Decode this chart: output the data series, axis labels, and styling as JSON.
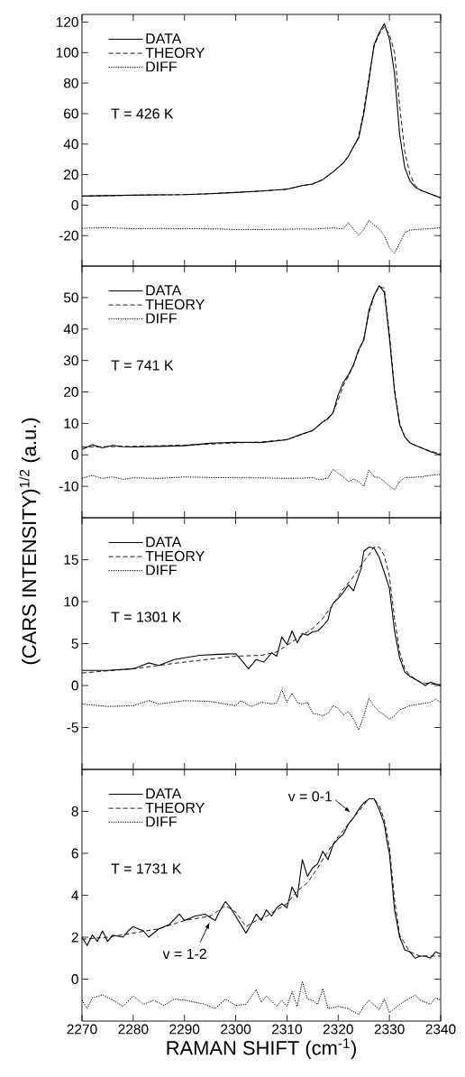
{
  "chart_data": [
    {
      "type": "line",
      "xlim": [
        2270,
        2340
      ],
      "ylim": [
        -40,
        125
      ],
      "xticks": [
        2270,
        2280,
        2290,
        2300,
        2310,
        2320,
        2330,
        2340
      ],
      "yticks": [
        -20,
        0,
        20,
        40,
        60,
        80,
        100,
        120
      ],
      "tick_labels": "y",
      "legend": "top left",
      "annotations": [
        "T = 426 K"
      ],
      "series": [
        {
          "name": "DATA",
          "color": "#000000",
          "line_style": "solid",
          "x": [
            2270,
            2275,
            2280,
            2285,
            2290,
            2295,
            2300,
            2305,
            2310,
            2313,
            2315,
            2317,
            2319,
            2321,
            2322,
            2323,
            2324,
            2325,
            2326,
            2327,
            2328,
            2329,
            2330,
            2331,
            2332,
            2333,
            2334,
            2335,
            2336,
            2338,
            2340
          ],
          "values": [
            5.9,
            6.2,
            6.5,
            6.7,
            6.9,
            7.5,
            8.3,
            9.2,
            10.4,
            12.8,
            13.8,
            16.7,
            21.7,
            27.6,
            32,
            38.4,
            44,
            60,
            82,
            105,
            113,
            119,
            109,
            86,
            46,
            24.6,
            15.8,
            11.8,
            9.9,
            7.3,
            4.7
          ]
        },
        {
          "name": "THEORY",
          "color": "#000000",
          "line_style": "dashed",
          "x": [
            2270,
            2275,
            2280,
            2285,
            2290,
            2295,
            2300,
            2305,
            2310,
            2313,
            2315,
            2317,
            2319,
            2321,
            2322,
            2323,
            2324,
            2325,
            2326,
            2327,
            2328,
            2329,
            2330,
            2331,
            2332,
            2333,
            2334,
            2335,
            2336,
            2338,
            2340
          ],
          "values": [
            5.9,
            6.2,
            6.5,
            6.7,
            6.9,
            7.5,
            8.3,
            9.2,
            10.4,
            12.8,
            13.8,
            16.7,
            21.7,
            27.6,
            32,
            38.4,
            45,
            62,
            84,
            104,
            112,
            117,
            112,
            100,
            65,
            35,
            20,
            13,
            10,
            7.3,
            4.7
          ]
        },
        {
          "name": "DIFF",
          "color": "#000000",
          "line_style": "dotted",
          "x": [
            2270,
            2275,
            2280,
            2285,
            2290,
            2295,
            2300,
            2305,
            2310,
            2313,
            2315,
            2317,
            2319,
            2321,
            2322,
            2323,
            2324,
            2325,
            2326,
            2327,
            2328,
            2329,
            2330,
            2331,
            2332,
            2333,
            2334,
            2335,
            2336,
            2338,
            2340
          ],
          "values": [
            -15.2,
            -14.8,
            -15.5,
            -15.3,
            -15.5,
            -15.5,
            -16,
            -16,
            -15.8,
            -15.6,
            -15.8,
            -15.3,
            -15,
            -15.5,
            -11.5,
            -16,
            -19.7,
            -16,
            -10,
            -13,
            -15.8,
            -20,
            -28,
            -31.5,
            -25,
            -18,
            -16.5,
            -16,
            -15.8,
            -15.5,
            -14.8
          ]
        }
      ]
    },
    {
      "type": "line",
      "xlim": [
        2270,
        2340
      ],
      "ylim": [
        -20,
        60
      ],
      "xticks": [
        2270,
        2280,
        2290,
        2300,
        2310,
        2320,
        2330,
        2340
      ],
      "yticks": [
        -10,
        0,
        10,
        20,
        30,
        40,
        50
      ],
      "tick_labels": "y",
      "legend": "top left",
      "annotations": [
        "T = 741 K"
      ],
      "ylabel": "(CARS INTENSITY)$^{1/2}$ (a.u.)",
      "series": [
        {
          "name": "DATA",
          "color": "#000000",
          "line_style": "solid",
          "x": [
            2270,
            2272,
            2274,
            2276,
            2278,
            2280,
            2285,
            2290,
            2295,
            2300,
            2305,
            2310,
            2313,
            2315,
            2316,
            2317,
            2318,
            2319,
            2320,
            2321,
            2322,
            2323,
            2324,
            2325,
            2326,
            2327,
            2328,
            2329,
            2330,
            2331,
            2332,
            2333,
            2334,
            2336,
            2338,
            2340
          ],
          "values": [
            1.7,
            3.2,
            2.2,
            3.0,
            2.6,
            2.5,
            2.7,
            2.9,
            3.7,
            4.0,
            3.9,
            4.8,
            6.7,
            7.7,
            9.1,
            10.5,
            11.5,
            13.4,
            19.1,
            23,
            25.4,
            28.7,
            33.5,
            36.4,
            46,
            50.7,
            53.8,
            51.7,
            37.3,
            20,
            9.6,
            5.7,
            3.8,
            2.4,
            1,
            0
          ]
        },
        {
          "name": "THEORY",
          "color": "#000000",
          "line_style": "dashed",
          "x": [
            2270,
            2272,
            2274,
            2276,
            2278,
            2280,
            2285,
            2290,
            2295,
            2300,
            2305,
            2310,
            2313,
            2315,
            2316,
            2317,
            2318,
            2319,
            2320,
            2321,
            2322,
            2323,
            2324,
            2325,
            2326,
            2327,
            2328,
            2329,
            2330,
            2331,
            2332,
            2333,
            2334,
            2336,
            2338,
            2340
          ],
          "values": [
            2.5,
            2.5,
            2.6,
            2.6,
            2.7,
            2.7,
            2.9,
            3.1,
            3.4,
            3.8,
            4.1,
            4.9,
            6.5,
            7.8,
            9.0,
            10.5,
            11.8,
            13.5,
            17.5,
            22,
            25,
            28.5,
            33,
            37,
            45,
            50.5,
            53.5,
            53,
            38.5,
            21,
            10,
            5.8,
            3.8,
            2.4,
            1.2,
            0.3
          ]
        },
        {
          "name": "DIFF",
          "color": "#000000",
          "line_style": "dotted",
          "x": [
            2270,
            2272,
            2274,
            2276,
            2278,
            2280,
            2285,
            2290,
            2295,
            2300,
            2305,
            2310,
            2313,
            2315,
            2316,
            2317,
            2318,
            2319,
            2320,
            2321,
            2322,
            2323,
            2324,
            2325,
            2326,
            2327,
            2328,
            2329,
            2330,
            2331,
            2332,
            2333,
            2334,
            2336,
            2338,
            2340
          ],
          "values": [
            -7.5,
            -6.5,
            -7.5,
            -7,
            -7.8,
            -7.3,
            -7.5,
            -7,
            -7.2,
            -7.3,
            -7.3,
            -7.5,
            -7.4,
            -7.2,
            -7.8,
            -7.7,
            -7.4,
            -4.6,
            -5.8,
            -7,
            -8.5,
            -7.7,
            -8.5,
            -10,
            -4.8,
            -7,
            -7.2,
            -8.5,
            -10,
            -11,
            -8.5,
            -7.2,
            -7.2,
            -7,
            -6.5,
            -6.2
          ]
        }
      ]
    },
    {
      "type": "line",
      "xlim": [
        2270,
        2340
      ],
      "ylim": [
        -10,
        20
      ],
      "xticks": [
        2270,
        2280,
        2290,
        2300,
        2310,
        2320,
        2330,
        2340
      ],
      "yticks": [
        -5,
        0,
        5,
        10,
        15
      ],
      "tick_labels": "y",
      "legend": "top left",
      "annotations": [
        "T = 1301 K"
      ],
      "series": [
        {
          "name": "DATA",
          "color": "#000000",
          "line_style": "solid",
          "x": [
            2270,
            2275,
            2280,
            2283,
            2285,
            2288,
            2290,
            2293,
            2296,
            2300,
            2301,
            2302.5,
            2304,
            2305.5,
            2307,
            2308,
            2309,
            2310,
            2311,
            2312,
            2313,
            2314,
            2315,
            2316,
            2317,
            2318,
            2318.5,
            2319,
            2320,
            2321,
            2322,
            2323,
            2324,
            2324.5,
            2325,
            2326,
            2327,
            2328,
            2329,
            2330,
            2331,
            2332,
            2333,
            2334,
            2336,
            2337,
            2338,
            2340
          ],
          "values": [
            1.8,
            1.8,
            2.0,
            2.7,
            2.4,
            3.1,
            3.3,
            3.6,
            3.7,
            3.8,
            3.1,
            2.0,
            3.1,
            2.8,
            3.9,
            3.5,
            5.8,
            4.9,
            6.5,
            5.1,
            6.2,
            6.0,
            6.4,
            6.5,
            7.1,
            7.8,
            9.1,
            9.8,
            10.4,
            11.1,
            12,
            11.3,
            13.1,
            14.0,
            16,
            16.5,
            16.4,
            15.3,
            13.5,
            11.6,
            6.5,
            3.3,
            1.6,
            1.1,
            0.4,
            0,
            0.4,
            0
          ]
        },
        {
          "name": "THEORY",
          "color": "#000000",
          "line_style": "dashed",
          "x": [
            2270,
            2280,
            2290,
            2300,
            2305,
            2308,
            2310,
            2313,
            2315,
            2317,
            2319,
            2321,
            2323,
            2325,
            2326,
            2327,
            2328,
            2329,
            2330,
            2331,
            2332,
            2333,
            2334,
            2336,
            2338,
            2340
          ],
          "values": [
            1.5,
            2.0,
            2.8,
            3.5,
            3.6,
            4.0,
            4.8,
            6.0,
            6.8,
            8.0,
            9.7,
            11.5,
            13,
            14.8,
            15.6,
            16.5,
            16.5,
            15.5,
            13,
            8,
            4,
            2,
            1.2,
            0.4,
            0.2,
            0.1
          ]
        },
        {
          "name": "DIFF",
          "color": "#000000",
          "line_style": "dotted",
          "x": [
            2270,
            2275,
            2280,
            2283,
            2285,
            2290,
            2295,
            2300,
            2301,
            2303,
            2305,
            2307,
            2308,
            2309,
            2310,
            2311,
            2312,
            2313,
            2314,
            2315,
            2317,
            2318,
            2319,
            2320,
            2321,
            2322,
            2323,
            2324,
            2325,
            2326,
            2327,
            2328,
            2329,
            2330,
            2331,
            2332,
            2334,
            2336,
            2338,
            2339,
            2340
          ],
          "values": [
            -2.2,
            -2.5,
            -2.4,
            -1.8,
            -2.2,
            -1.8,
            -1.9,
            -2.4,
            -1.8,
            -2.5,
            -2.0,
            -2.2,
            -2.1,
            -0.5,
            -2.0,
            -0.9,
            -2.0,
            -2.2,
            -2.0,
            -3.3,
            -3.6,
            -3.3,
            -2.4,
            -2.7,
            -3.5,
            -3.1,
            -4.0,
            -5.3,
            -3.6,
            -1.5,
            -2.5,
            -3.1,
            -3.5,
            -4.0,
            -3.6,
            -2.9,
            -2.4,
            -2.2,
            -2.0,
            -1.6,
            -2.0
          ]
        }
      ]
    },
    {
      "type": "line",
      "xlim": [
        2270,
        2340
      ],
      "ylim": [
        -2,
        10
      ],
      "xticks": [
        2270,
        2280,
        2290,
        2300,
        2310,
        2320,
        2330,
        2340
      ],
      "yticks": [
        0,
        2,
        4,
        6,
        8
      ],
      "legend": "top left",
      "xlabel": "RAMAN SHIFT (cm$^{-1}$)",
      "annotations": [
        "T = 1731 K",
        {
          "text": "v = 0-1",
          "x": 2322.6,
          "y": 7.9
        },
        {
          "text": "v = 1-2",
          "x": 2295,
          "y": 2.75
        }
      ],
      "series": [
        {
          "name": "DATA",
          "color": "#000000",
          "line_style": "solid",
          "x": [
            2270,
            2271,
            2272,
            2273,
            2274,
            2275,
            2276,
            2278,
            2279,
            2280,
            2282,
            2283,
            2285,
            2287,
            2289,
            2290,
            2292,
            2294,
            2296,
            2297,
            2298,
            2299,
            2300,
            2301,
            2302,
            2303,
            2304,
            2305,
            2306,
            2307,
            2308,
            2309,
            2310,
            2311,
            2312,
            2313,
            2314,
            2315,
            2316,
            2317,
            2318,
            2319,
            2320,
            2321,
            2322,
            2323,
            2324,
            2325,
            2326,
            2327,
            2328,
            2329,
            2329.5,
            2330,
            2331,
            2332,
            2333,
            2334,
            2335,
            2336,
            2337,
            2338,
            2339,
            2340
          ],
          "values": [
            2.0,
            1.6,
            2.1,
            1.8,
            2.3,
            1.8,
            2.1,
            2.0,
            2.3,
            2.5,
            2.3,
            2.0,
            2.4,
            2.6,
            3.1,
            2.8,
            3.0,
            3.1,
            2.8,
            3.3,
            3.7,
            3.4,
            3.0,
            2.6,
            2.2,
            2.6,
            3.1,
            2.8,
            3.3,
            3.0,
            3.4,
            3.6,
            3.4,
            4.4,
            3.9,
            5.7,
            4.9,
            5.3,
            5.5,
            6.1,
            5.7,
            6.4,
            6.7,
            6.9,
            7.4,
            7.7,
            8.1,
            8.4,
            8.6,
            8.6,
            8.1,
            7.4,
            6.6,
            6.0,
            3.3,
            2.0,
            1.4,
            1.3,
            1.0,
            1.1,
            1.1,
            1.0,
            1.3,
            1.2
          ]
        },
        {
          "name": "THEORY",
          "color": "#000000",
          "line_style": "dashed",
          "x": [
            2270,
            2275,
            2280,
            2285,
            2290,
            2295,
            2298,
            2300,
            2302,
            2304,
            2306,
            2308,
            2310,
            2312,
            2314,
            2316,
            2318,
            2320,
            2322,
            2324,
            2326,
            2327,
            2328,
            2329,
            2330,
            2331,
            2332,
            2334,
            2336,
            2338,
            2340
          ],
          "values": [
            1.9,
            2.0,
            2.2,
            2.4,
            2.8,
            3.0,
            3.5,
            3.2,
            2.5,
            2.8,
            3.0,
            3.3,
            3.6,
            4.2,
            4.6,
            5.3,
            6.1,
            6.8,
            7.4,
            8.0,
            8.6,
            8.6,
            8.3,
            7.6,
            6.3,
            3.8,
            2.1,
            1.3,
            1.1,
            1.1,
            1.1
          ]
        },
        {
          "name": "DIFF",
          "color": "#000000",
          "line_style": "dotted",
          "x": [
            2270,
            2271,
            2272,
            2274,
            2276,
            2278,
            2280,
            2282,
            2284,
            2286,
            2288,
            2290,
            2292,
            2294,
            2296,
            2298,
            2300,
            2302,
            2304,
            2305,
            2306,
            2308,
            2309,
            2310,
            2311,
            2312,
            2313,
            2314,
            2315,
            2316,
            2317,
            2318,
            2320,
            2322,
            2324,
            2325,
            2326,
            2328,
            2329,
            2330,
            2332,
            2334,
            2335,
            2336,
            2338,
            2339,
            2340
          ],
          "values": [
            -1.0,
            -1.4,
            -0.9,
            -0.75,
            -1.0,
            -1.3,
            -0.8,
            -1.2,
            -1.0,
            -1.25,
            -0.95,
            -1.0,
            -1.1,
            -1.2,
            -1.4,
            -0.95,
            -1.25,
            -1.2,
            -0.5,
            -1.1,
            -0.8,
            -1.3,
            -1.0,
            -1.3,
            -0.6,
            -1.3,
            -0.1,
            -0.95,
            -1.0,
            -1.2,
            -0.45,
            -1.4,
            -1.3,
            -1.4,
            -1.7,
            -1.3,
            -1.0,
            -1.45,
            -0.95,
            -1.6,
            -1.2,
            -0.9,
            -0.75,
            -1.0,
            -1.2,
            -0.9,
            -1.0
          ]
        }
      ]
    }
  ]
}
